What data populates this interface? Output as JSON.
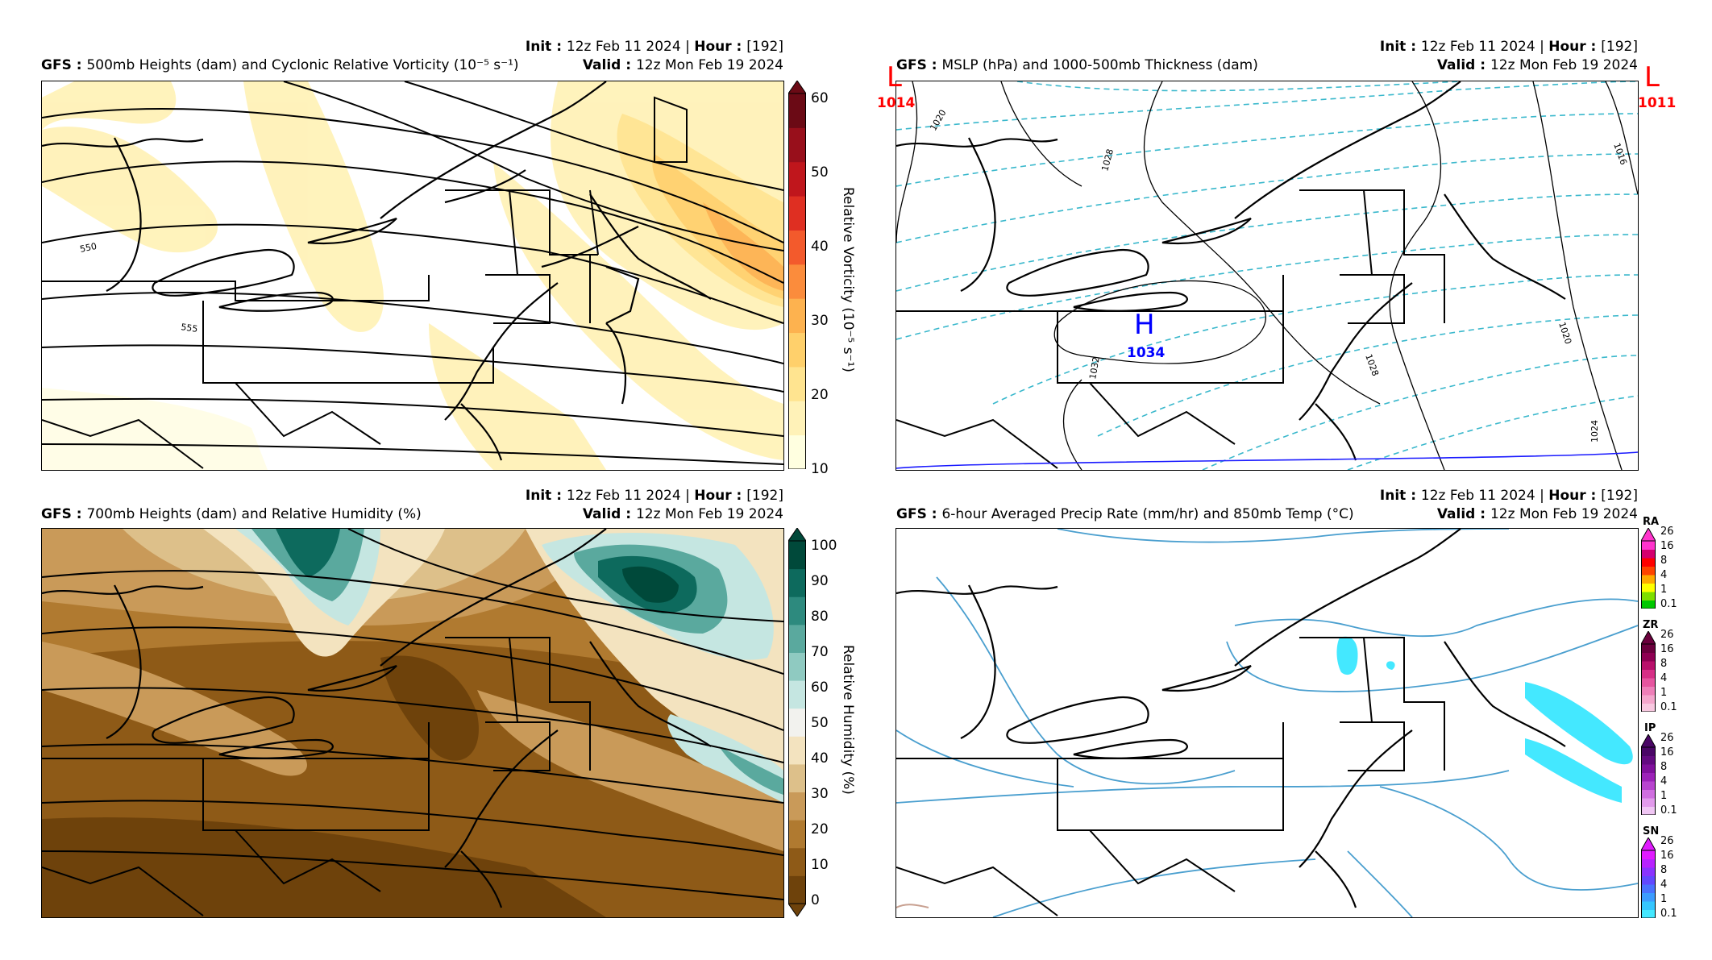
{
  "panels": {
    "tl": {
      "model": "GFS",
      "title": "500mb Heights (dam) and Cyclonic Relative Vorticity (10⁻⁵ s⁻¹)",
      "init_label": "Init",
      "init_value": "12z Feb 11 2024",
      "hour_label": "Hour",
      "hour_value": "[192]",
      "valid_label": "Valid",
      "valid_value": "12z Mon Feb 19 2024",
      "contour_labels": [
        "550",
        "555"
      ],
      "colorbar": {
        "title": "Relative Vorticity (10⁻⁵ s⁻¹)",
        "ticks": [
          "60",
          "50",
          "40",
          "30",
          "20",
          "10"
        ],
        "colors": [
          "#ffffe0",
          "#fff2b8",
          "#ffe490",
          "#ffd06b",
          "#fdb24f",
          "#fb8c3c",
          "#f35a2c",
          "#df2f22",
          "#c0161c",
          "#980f1b",
          "#6b0a15"
        ]
      }
    },
    "tr": {
      "model": "GFS",
      "title": "MSLP (hPa) and 1000-500mb Thickness (dam)",
      "init_label": "Init",
      "init_value": "12z Feb 11 2024",
      "hour_label": "Hour",
      "hour_value": "[192]",
      "valid_label": "Valid",
      "valid_value": "12z Mon Feb 19 2024",
      "systems": [
        {
          "type": "L",
          "value": "1014"
        },
        {
          "type": "L",
          "value": "1011"
        },
        {
          "type": "H",
          "value": "1034"
        }
      ],
      "isobar_labels": [
        "1020",
        "1028",
        "1032",
        "1028",
        "1020",
        "1024",
        "1016"
      ]
    },
    "bl": {
      "model": "GFS",
      "title": "700mb Heights (dam) and Relative Humidity (%)",
      "init_label": "Init",
      "init_value": "12z Feb 11 2024",
      "hour_label": "Hour",
      "hour_value": "[192]",
      "valid_label": "Valid",
      "valid_value": "12z Mon Feb 19 2024",
      "colorbar": {
        "title": "Relative Humidity (%)",
        "ticks": [
          "100",
          "90",
          "80",
          "70",
          "60",
          "50",
          "40",
          "30",
          "20",
          "10",
          "0"
        ],
        "colors": [
          "#00493a",
          "#0d6a5d",
          "#2d8a7e",
          "#5aa99e",
          "#8fcac1",
          "#c5e6e1",
          "#f2f2ee",
          "#f3e3bf",
          "#ddc08a",
          "#c99a59",
          "#b07a30",
          "#8e5a17",
          "#6e420b"
        ]
      }
    },
    "br": {
      "model": "GFS",
      "title": "6-hour Averaged Precip Rate (mm/hr) and 850mb Temp (°C)",
      "init_label": "Init",
      "init_value": "12z Feb 11 2024",
      "hour_label": "Hour",
      "hour_value": "[192]",
      "valid_label": "Valid",
      "valid_value": "12z Mon Feb 19 2024",
      "precip_bars": [
        {
          "label": "RA",
          "ticks": [
            "26",
            "16",
            "8",
            "4",
            "1",
            "0.1"
          ],
          "colors": [
            "#00c800",
            "#7fdf00",
            "#ffff00",
            "#ffaa00",
            "#ff4400",
            "#ff0000",
            "#d4006e",
            "#ff33cc"
          ]
        },
        {
          "label": "ZR",
          "ticks": [
            "26",
            "16",
            "8",
            "4",
            "1",
            "0.1"
          ],
          "colors": [
            "#f8c8e0",
            "#f4a6cc",
            "#ee7fb8",
            "#e6559f",
            "#d62f86",
            "#b8106b",
            "#8e0052",
            "#6b003d"
          ]
        },
        {
          "label": "IP",
          "ticks": [
            "26",
            "16",
            "8",
            "4",
            "1",
            "0.1"
          ],
          "colors": [
            "#f0c6f4",
            "#e29aec",
            "#d06ee0",
            "#b844cf",
            "#9c22b8",
            "#80109c",
            "#630a80",
            "#4a0666"
          ]
        },
        {
          "label": "SN",
          "ticks": [
            "26",
            "16",
            "8",
            "4",
            "1",
            "0.1"
          ],
          "colors": [
            "#44e8ff",
            "#35c6ff",
            "#3c9cff",
            "#4a72ff",
            "#6248ff",
            "#8a33ff",
            "#b822ff",
            "#e01aff"
          ]
        }
      ]
    }
  }
}
